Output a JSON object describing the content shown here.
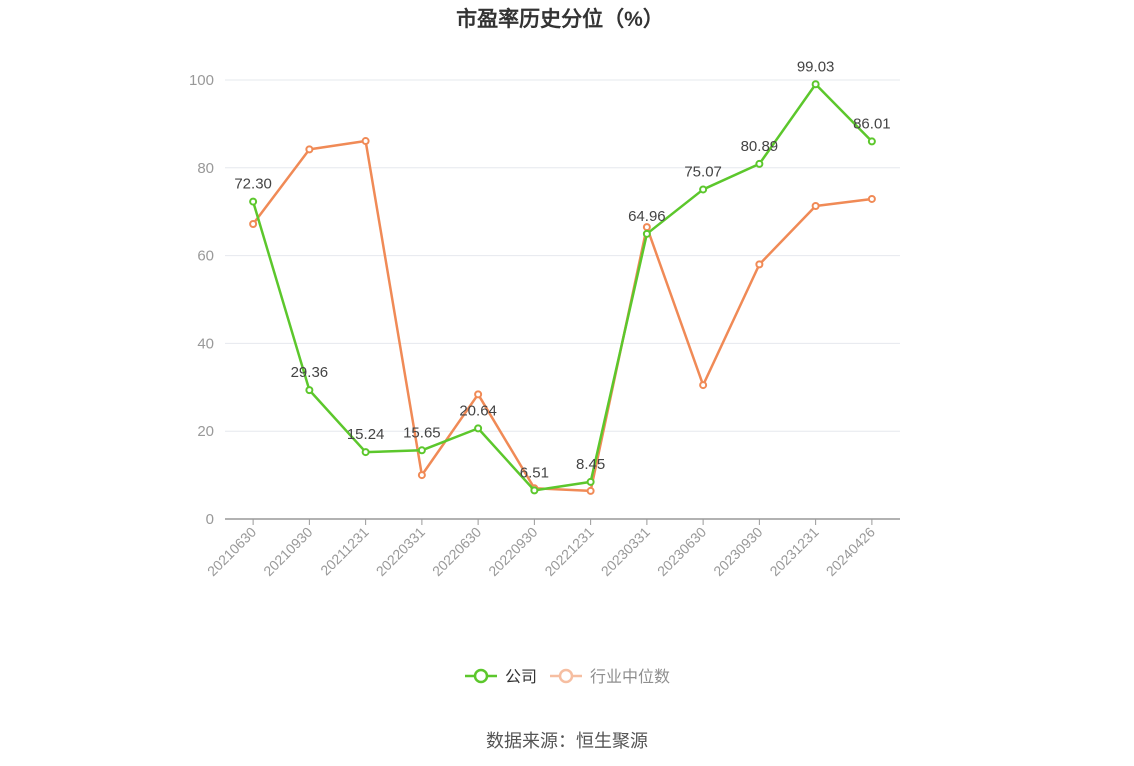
{
  "chart_data": {
    "type": "line",
    "title": "市盈率历史分位（%）",
    "xlabel": "",
    "ylabel": "",
    "ylim": [
      0,
      100
    ],
    "yticks": [
      0,
      20,
      40,
      60,
      80,
      100
    ],
    "categories": [
      "20210630",
      "20210930",
      "20211231",
      "20220331",
      "20220630",
      "20220930",
      "20221231",
      "20230331",
      "20230630",
      "20230930",
      "20231231",
      "20240426"
    ],
    "series": [
      {
        "name": "公司",
        "color": "#5cc72c",
        "values": [
          72.3,
          29.36,
          15.24,
          15.65,
          20.64,
          6.51,
          8.45,
          64.96,
          75.07,
          80.89,
          99.03,
          86.01
        ],
        "labels": [
          "72.30",
          "29.36",
          "15.24",
          "15.65",
          "20.64",
          "6.51",
          "8.45",
          "64.96",
          "75.07",
          "80.89",
          "99.03",
          "86.01"
        ]
      },
      {
        "name": "行业中位数",
        "color": "#f08a56",
        "values": [
          67.2,
          84.2,
          86.1,
          10.0,
          28.4,
          7.0,
          6.4,
          66.5,
          30.5,
          58.0,
          71.3,
          72.9
        ]
      }
    ],
    "grid": true,
    "legend": "bottom-center",
    "source": "数据来源：恒生聚源"
  }
}
